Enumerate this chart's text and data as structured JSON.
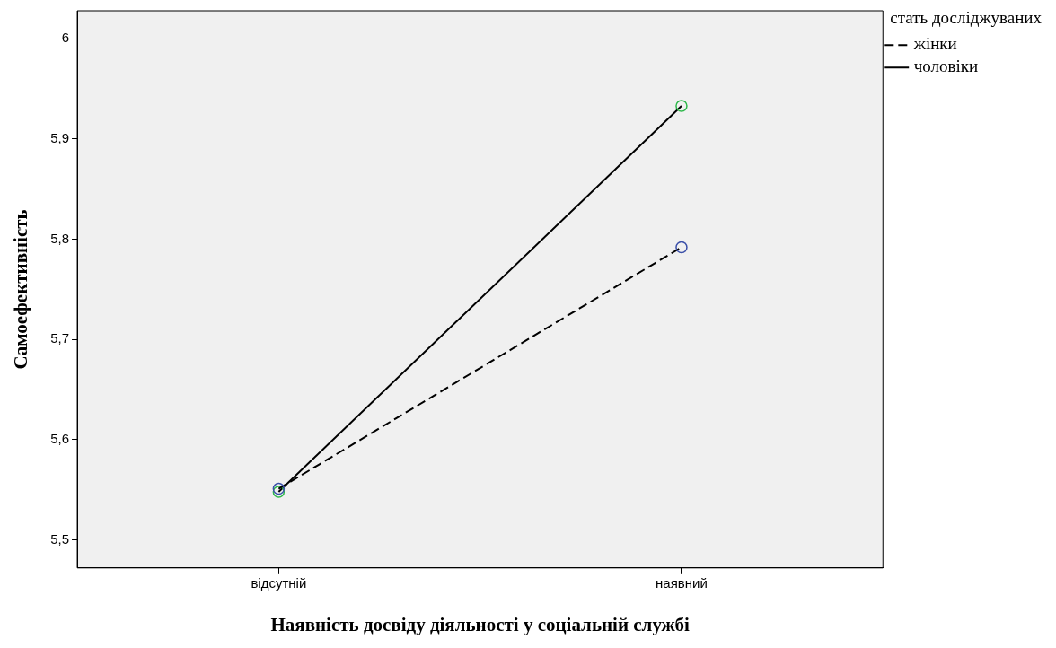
{
  "chart_data": {
    "type": "line",
    "xlabel": "Наявність досвіду діяльності у соціальній службі",
    "ylabel": "Самоефективність",
    "legend_title": "стать досліджуваних",
    "categories": [
      "відсутній",
      "наявний"
    ],
    "series": [
      {
        "name": "жінки",
        "color": "#000000",
        "colors": [
          "#3a4fa8",
          "#3a4fa8"
        ],
        "line_style": "dashed",
        "values": [
          5.551,
          5.792
        ]
      },
      {
        "name": "чоловіки",
        "color": "#000000",
        "colors": [
          "#2db84a",
          "#2db84a"
        ],
        "line_style": "solid",
        "values": [
          5.548,
          5.933
        ]
      }
    ],
    "ylim": [
      5.472,
      6.028
    ],
    "yticks": [
      {
        "value": 5.5,
        "label": "5,5"
      },
      {
        "value": 5.6,
        "label": "5,6"
      },
      {
        "value": 5.7,
        "label": "5,7"
      },
      {
        "value": 5.8,
        "label": "5,8"
      },
      {
        "value": 5.9,
        "label": "5,9"
      },
      {
        "value": 6,
        "label": "6"
      }
    ],
    "marker": "circle",
    "grid": false,
    "legend": "top right"
  }
}
